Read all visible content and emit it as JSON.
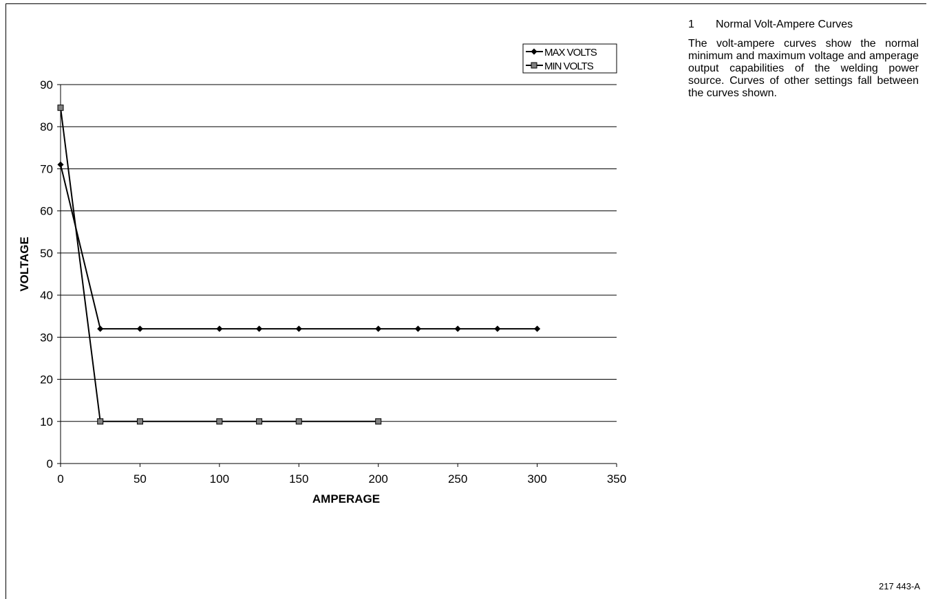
{
  "side_panel": {
    "item_number": "1",
    "heading": "Normal Volt-Ampere Curves",
    "description": "The volt-ampere curves show the normal minimum and maximum voltage and amperage output capabilities of the welding power source. Curves of other settings fall between the curves shown."
  },
  "figure_code": "217 443-A",
  "chart_data": {
    "type": "line",
    "xlabel": "AMPERAGE",
    "ylabel": "VOLTAGE",
    "xlim": [
      0,
      350
    ],
    "ylim": [
      0,
      90
    ],
    "x_ticks": [
      0,
      50,
      100,
      150,
      200,
      250,
      300,
      350
    ],
    "y_ticks": [
      0,
      10,
      20,
      30,
      40,
      50,
      60,
      70,
      80,
      90
    ],
    "grid": "horizontal",
    "legend_position": "top-right",
    "series": [
      {
        "name": "MAX VOLTS",
        "marker": "diamond",
        "marker_color": "#000000",
        "x": [
          0,
          25,
          50,
          100,
          125,
          150,
          200,
          225,
          250,
          275,
          300
        ],
        "y": [
          71,
          32,
          32,
          32,
          32,
          32,
          32,
          32,
          32,
          32,
          32
        ]
      },
      {
        "name": "MIN VOLTS",
        "marker": "square",
        "marker_color": "#808080",
        "x": [
          0,
          25,
          50,
          100,
          125,
          150,
          200
        ],
        "y": [
          84.5,
          10,
          10,
          10,
          10,
          10,
          10
        ]
      }
    ]
  }
}
